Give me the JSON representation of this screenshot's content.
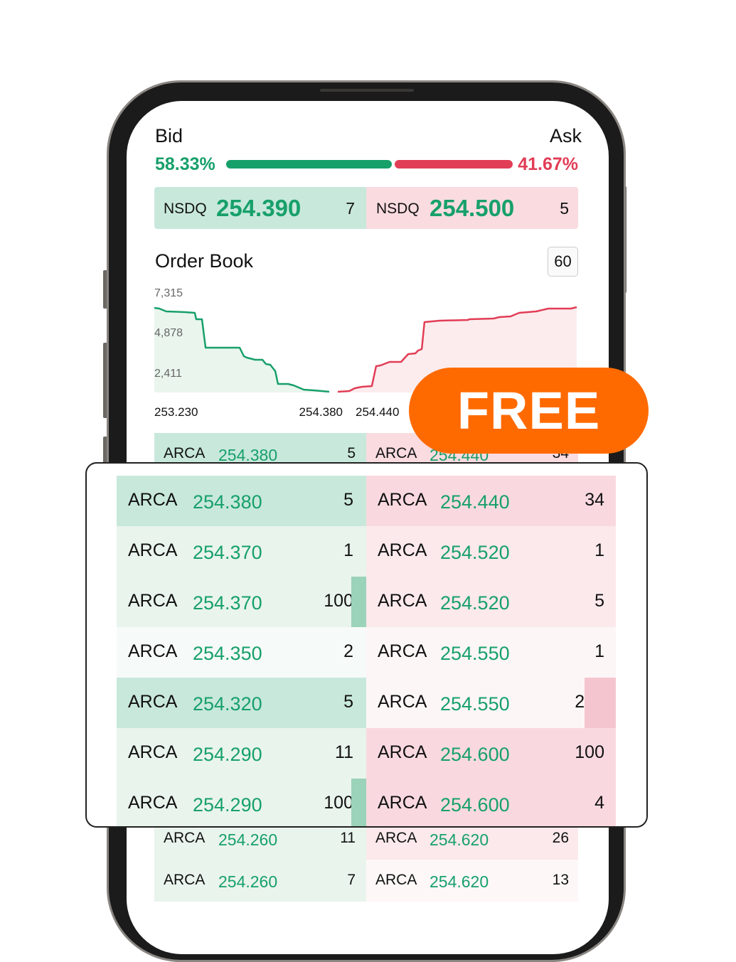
{
  "header": {
    "bid_label": "Bid",
    "ask_label": "Ask",
    "bid_pct": "58.33%",
    "ask_pct": "41.67%",
    "bid_fraction": 0.5833,
    "colors": {
      "bid": "#17a06a",
      "ask": "#e23d56",
      "promo": "#ff6a00"
    }
  },
  "nbbo": {
    "bid": {
      "exchange": "NSDQ",
      "price": "254.390",
      "size": "7"
    },
    "ask": {
      "exchange": "NSDQ",
      "price": "254.500",
      "size": "5"
    }
  },
  "order_book": {
    "title": "Order Book",
    "interval_button": "60",
    "chart": {
      "type": "area",
      "y_ticks": [
        "7,315",
        "4,878",
        "2,411"
      ],
      "y_tick_values": [
        7315,
        4878,
        2411
      ],
      "x_ticks": [
        "253.230",
        "254.380",
        "254.440"
      ],
      "bid_series": [
        [
          253.23,
          6174
        ],
        [
          253.263,
          6122
        ],
        [
          253.309,
          5914
        ],
        [
          253.431,
          5862
        ],
        [
          253.496,
          5811
        ],
        [
          253.506,
          5344
        ],
        [
          253.543,
          5344
        ],
        [
          253.567,
          3268
        ],
        [
          253.791,
          3268
        ],
        [
          253.819,
          2646
        ],
        [
          253.838,
          2542
        ],
        [
          253.894,
          2387
        ],
        [
          253.941,
          2387
        ],
        [
          253.964,
          2075
        ],
        [
          253.992,
          2023
        ],
        [
          254.025,
          1556
        ],
        [
          254.043,
          623
        ],
        [
          254.109,
          623
        ],
        [
          254.146,
          519
        ],
        [
          254.212,
          208
        ],
        [
          254.277,
          156
        ],
        [
          254.333,
          104
        ],
        [
          254.38,
          52
        ]
      ],
      "ask_series": [
        [
          254.44,
          52
        ],
        [
          254.515,
          104
        ],
        [
          254.552,
          311
        ],
        [
          254.599,
          415
        ],
        [
          254.664,
          467
        ],
        [
          254.692,
          1920
        ],
        [
          254.72,
          1971
        ],
        [
          254.781,
          2231
        ],
        [
          254.856,
          2231
        ],
        [
          254.903,
          2802
        ],
        [
          254.95,
          2853
        ],
        [
          254.968,
          3061
        ],
        [
          254.992,
          3165
        ],
        [
          255.01,
          5136
        ],
        [
          255.109,
          5240
        ],
        [
          255.296,
          5292
        ],
        [
          255.305,
          5344
        ],
        [
          255.464,
          5396
        ],
        [
          255.501,
          5499
        ],
        [
          255.576,
          5551
        ],
        [
          255.632,
          5811
        ],
        [
          255.744,
          5914
        ],
        [
          255.824,
          6122
        ],
        [
          255.973,
          6122
        ],
        [
          256.011,
          6226
        ]
      ]
    },
    "rows": [
      {
        "bid": {
          "exchange": "ARCA",
          "price": "254.380",
          "size": "5",
          "depth": 0
        },
        "ask": {
          "exchange": "ARCA",
          "price": "254.440",
          "size": "34",
          "depth": 0
        }
      },
      {
        "bid": {
          "exchange": "ARCA",
          "price": "254.370",
          "size": "1",
          "depth": 0
        },
        "ask": {
          "exchange": "ARCA",
          "price": "254.520",
          "size": "1",
          "depth": 0
        }
      },
      {
        "bid": {
          "exchange": "ARCA",
          "price": "254.370",
          "size": "100",
          "depth": 0.06
        },
        "ask": {
          "exchange": "ARCA",
          "price": "254.520",
          "size": "5",
          "depth": 0
        }
      },
      {
        "bid": {
          "exchange": "ARCA",
          "price": "254.350",
          "size": "2",
          "depth": 0
        },
        "ask": {
          "exchange": "ARCA",
          "price": "254.550",
          "size": "1",
          "depth": 0
        }
      },
      {
        "bid": {
          "exchange": "ARCA",
          "price": "254.320",
          "size": "5",
          "depth": 0
        },
        "ask": {
          "exchange": "ARCA",
          "price": "254.550",
          "size": "250",
          "depth": 0.125
        }
      },
      {
        "bid": {
          "exchange": "ARCA",
          "price": "254.290",
          "size": "11",
          "depth": 0
        },
        "ask": {
          "exchange": "ARCA",
          "price": "254.600",
          "size": "100",
          "depth": 0
        }
      },
      {
        "bid": {
          "exchange": "ARCA",
          "price": "254.290",
          "size": "100",
          "depth": 0.06
        },
        "ask": {
          "exchange": "ARCA",
          "price": "254.600",
          "size": "4",
          "depth": 0
        }
      }
    ],
    "tail_rows": [
      {
        "bid": {
          "exchange": "ARCA",
          "price": "254.260",
          "size": "11"
        },
        "ask": {
          "exchange": "ARCA",
          "price": "254.620",
          "size": "26"
        }
      },
      {
        "bid": {
          "exchange": "ARCA",
          "price": "254.260",
          "size": "7"
        },
        "ask": {
          "exchange": "ARCA",
          "price": "254.620",
          "size": "13"
        }
      }
    ]
  },
  "promo": {
    "badge": "FREE"
  }
}
